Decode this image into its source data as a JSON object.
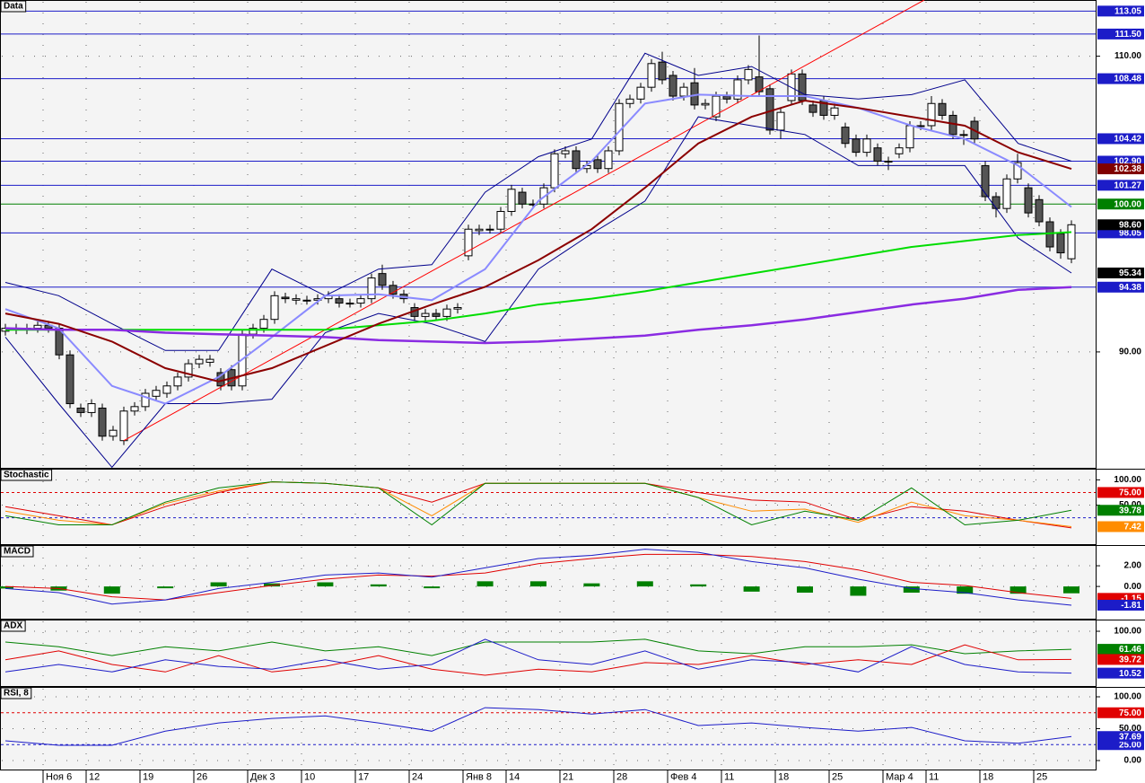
{
  "chart_data": [
    {
      "type": "candlestick",
      "title": "Data",
      "categories": [
        null,
        null,
        null,
        null,
        "Ноя 6",
        null,
        null,
        null,
        "12",
        null,
        null,
        null,
        null,
        "19",
        null,
        null,
        null,
        null,
        "26",
        null,
        null,
        null,
        null,
        "Дек 3",
        null,
        null,
        null,
        null,
        "10",
        null,
        null,
        null,
        null,
        "17",
        null,
        null,
        null,
        null,
        "24",
        null,
        null,
        null,
        null,
        "Янв 8",
        null,
        null,
        null,
        "14",
        null,
        null,
        null,
        null,
        "21",
        null,
        null,
        null,
        null,
        "28",
        null,
        null,
        null,
        null,
        "Фев 4",
        null,
        null,
        null,
        null,
        "11",
        null,
        null,
        null,
        null,
        "18",
        null,
        null,
        null,
        null,
        "25",
        null,
        null,
        null,
        null,
        "Мар 4",
        null,
        null,
        null,
        "11",
        null,
        null,
        null,
        null,
        "18",
        null,
        null,
        null,
        null,
        "25",
        null,
        null,
        null
      ],
      "open": [
        91.4,
        91.6,
        91.5,
        91.6,
        91.8,
        91.6,
        89.8,
        86.2,
        85.9,
        86.2,
        84.3,
        84.0,
        86.0,
        86.3,
        87.0,
        87.2,
        87.7,
        88.3,
        89.2,
        89.3,
        88.6,
        88.8,
        87.7,
        91.2,
        91.6,
        92.2,
        93.7,
        93.5,
        93.5,
        93.5,
        93.6,
        93.6,
        93.3,
        93.3,
        93.6,
        95.3,
        94.5,
        93.9,
        93.0,
        92.4,
        92.6,
        92.4,
        92.9,
        96.5,
        98.2,
        98.3,
        98.3,
        99.5,
        100.8,
        100.0,
        100.0,
        101.1,
        103.4,
        103.6,
        102.4,
        103.0,
        102.4,
        103.6,
        106.8,
        107.1,
        107.9,
        109.6,
        108.7,
        107.3,
        108.2,
        106.7,
        105.9,
        107.3,
        107.1,
        108.4,
        108.6,
        107.8,
        105.0,
        107.0,
        108.8,
        106.7,
        107.0,
        106.0,
        105.2,
        104.4,
        103.5,
        103.8,
        102.9,
        103.4,
        103.8,
        105.3,
        105.3,
        106.8,
        106.0,
        104.7,
        105.6,
        102.6,
        100.5,
        99.7,
        101.7,
        101.1,
        100.3,
        98.8,
        98.0,
        96.3
      ],
      "high": [
        91.9,
        91.9,
        91.9,
        92.1,
        92.1,
        91.9,
        90.1,
        86.5,
        86.8,
        86.5,
        85.0,
        86.3,
        86.6,
        87.5,
        87.7,
        88.0,
        88.6,
        89.5,
        89.8,
        89.8,
        88.9,
        89.1,
        91.5,
        91.9,
        92.5,
        94.1,
        94.0,
        93.9,
        93.8,
        93.9,
        94.1,
        93.9,
        93.6,
        93.9,
        95.3,
        95.9,
        94.8,
        94.2,
        93.3,
        92.9,
        92.9,
        93.2,
        93.3,
        98.6,
        98.6,
        98.6,
        99.8,
        101.3,
        101.1,
        100.3,
        101.4,
        103.7,
        103.9,
        103.9,
        102.9,
        103.3,
        103.9,
        107.1,
        107.4,
        108.2,
        109.8,
        110.3,
        109.0,
        108.2,
        109.2,
        107.1,
        107.6,
        107.6,
        108.7,
        109.4,
        111.4,
        108.1,
        106.5,
        109.1,
        109.1,
        107.0,
        107.3,
        106.8,
        105.5,
        104.7,
        104.7,
        104.1,
        103.2,
        104.1,
        105.6,
        105.6,
        107.3,
        107.1,
        106.3,
        105.0,
        105.9,
        102.9,
        100.8,
        102.0,
        103.4,
        101.4,
        100.6,
        99.1,
        98.3,
        98.9
      ],
      "low": [
        91.1,
        91.2,
        91.2,
        91.3,
        91.3,
        89.5,
        86.2,
        85.6,
        85.6,
        84.0,
        84.0,
        83.7,
        85.7,
        86.0,
        86.7,
        86.9,
        87.4,
        88.0,
        88.9,
        89.0,
        87.4,
        87.4,
        87.4,
        90.9,
        91.3,
        91.9,
        93.3,
        93.2,
        93.2,
        93.2,
        93.3,
        93.0,
        93.0,
        93.0,
        93.3,
        94.2,
        93.6,
        93.3,
        92.1,
        92.1,
        92.1,
        92.1,
        92.6,
        96.2,
        97.9,
        98.0,
        98.0,
        99.2,
        99.7,
        99.7,
        99.7,
        100.8,
        103.1,
        102.1,
        102.1,
        102.1,
        102.1,
        103.3,
        106.5,
        106.8,
        107.6,
        108.1,
        107.0,
        107.0,
        106.4,
        106.4,
        105.6,
        106.8,
        106.8,
        108.1,
        107.3,
        104.7,
        104.4,
        106.7,
        106.7,
        105.9,
        105.7,
        105.7,
        103.8,
        103.2,
        103.2,
        102.6,
        102.3,
        103.1,
        103.5,
        105.0,
        105.0,
        105.7,
        104.4,
        104.0,
        104.1,
        100.2,
        99.1,
        99.4,
        101.4,
        99.1,
        98.5,
        96.8,
        96.3,
        96.0
      ],
      "close": [
        91.6,
        91.5,
        91.6,
        91.8,
        91.6,
        89.8,
        86.5,
        85.9,
        86.5,
        84.3,
        84.7,
        86.0,
        86.3,
        87.2,
        87.4,
        87.7,
        88.3,
        89.2,
        89.5,
        89.5,
        87.7,
        87.7,
        91.2,
        91.6,
        92.2,
        93.8,
        93.6,
        93.6,
        93.5,
        93.6,
        93.8,
        93.3,
        93.3,
        93.6,
        95.0,
        94.5,
        93.9,
        93.6,
        92.4,
        92.6,
        92.4,
        92.9,
        93.0,
        98.3,
        98.3,
        98.3,
        99.5,
        101.0,
        100.0,
        100.0,
        101.1,
        103.4,
        103.6,
        102.4,
        102.6,
        102.4,
        103.6,
        106.8,
        107.1,
        107.9,
        109.5,
        108.4,
        107.3,
        107.9,
        106.7,
        106.8,
        107.3,
        107.1,
        108.4,
        109.1,
        107.6,
        105.0,
        106.2,
        108.8,
        107.0,
        106.2,
        106.0,
        106.5,
        104.1,
        103.5,
        104.4,
        102.9,
        102.9,
        103.8,
        105.3,
        105.3,
        106.8,
        106.0,
        104.7,
        104.7,
        104.4,
        100.5,
        99.7,
        101.7,
        102.8,
        99.4,
        98.8,
        97.1,
        96.7,
        98.6
      ],
      "up_color": "#ffffff",
      "down_color": "#555555",
      "overlays": [
        {
          "color": "#00008b",
          "line_width": 1,
          "values": [
            94.7,
            93.8,
            91.9,
            90.1,
            90.1,
            95.6,
            93.8,
            95.6,
            95.9,
            100.8,
            103.2,
            104.4,
            110.2,
            108.7,
            109.3,
            107.4,
            107.1,
            107.4,
            108.4,
            104.1,
            102.9
          ]
        },
        {
          "color": "#00008b",
          "line_width": 1,
          "values": [
            91.0,
            86.5,
            82.2,
            86.5,
            86.5,
            86.8,
            91.3,
            92.6,
            91.9,
            90.7,
            95.6,
            98.0,
            100.2,
            105.9,
            105.3,
            104.7,
            102.6,
            102.6,
            102.6,
            97.7,
            95.34
          ]
        },
        {
          "color": "#8a8aff",
          "line_width": 2,
          "values": [
            92.9,
            91.6,
            87.7,
            86.5,
            88.3,
            91.0,
            93.8,
            93.9,
            93.5,
            95.6,
            100.2,
            102.9,
            106.8,
            107.4,
            107.3,
            107.3,
            106.5,
            105.3,
            104.4,
            102.6,
            99.8
          ]
        },
        {
          "color": "#00dd00",
          "line_width": 2,
          "values": [
            91.5,
            91.5,
            91.5,
            91.5,
            91.5,
            91.5,
            91.5,
            91.8,
            92.1,
            92.6,
            93.2,
            93.6,
            94.1,
            94.7,
            95.3,
            95.9,
            96.5,
            97.1,
            97.5,
            97.9,
            98.1
          ]
        },
        {
          "color": "#8a2be2",
          "line_width": 2.5,
          "values": [
            91.6,
            91.5,
            91.5,
            91.3,
            91.2,
            91.1,
            91.0,
            90.8,
            90.7,
            90.6,
            90.7,
            90.9,
            91.1,
            91.5,
            91.8,
            92.2,
            92.7,
            93.2,
            93.6,
            94.2,
            94.38
          ]
        },
        {
          "color": "#8b0000",
          "line_width": 2,
          "values": [
            92.6,
            91.9,
            90.7,
            88.9,
            88.0,
            88.9,
            90.4,
            91.9,
            93.2,
            94.4,
            96.2,
            98.3,
            101.1,
            104.1,
            105.9,
            107.0,
            106.5,
            105.9,
            105.3,
            103.5,
            102.38
          ]
        }
      ],
      "trendline": {
        "color": "#ff0000",
        "values": [
          84.0,
          113.8
        ]
      },
      "levels": [
        {
          "value": 113.05,
          "label": "113.05",
          "color": "#1c1cc8"
        },
        {
          "value": 111.5,
          "label": "111.50",
          "color": "#1c1cc8"
        },
        {
          "value": 108.48,
          "label": "108.48",
          "color": "#1c1cc8"
        },
        {
          "value": 104.42,
          "label": "104.42",
          "color": "#1c1cc8"
        },
        {
          "value": 102.9,
          "label": "102.90",
          "color": "#1c1cc8"
        },
        {
          "value": 101.27,
          "label": "101.27",
          "color": "#1c1cc8"
        },
        {
          "value": 100,
          "label": "100.00",
          "color": "#008000"
        },
        {
          "value": 98.05,
          "label": "98.05",
          "color": "#1c1cc8"
        },
        {
          "value": 94.38,
          "label": "94.38",
          "color": "#1c1cc8"
        }
      ],
      "price_labels": [
        {
          "value": 102.38,
          "label": "102.38",
          "color": "#800000"
        },
        {
          "value": 98.6,
          "label": "98.60",
          "color": "#000000"
        },
        {
          "value": 95.34,
          "label": "95.34",
          "color": "#000000"
        }
      ],
      "ylim": [
        82.1,
        113.8
      ],
      "yticks": [
        {
          "value": 110,
          "label": "110.00"
        },
        {
          "value": 90,
          "label": "90.00"
        }
      ]
    },
    {
      "type": "line",
      "title": "Stochastic",
      "ylim": [
        -29,
        122
      ],
      "yticks": [
        {
          "value": 100,
          "label": "100.00"
        },
        {
          "value": 50,
          "label": "50.00"
        }
      ],
      "levels": [
        {
          "value": 75,
          "label": "75.00",
          "color": "#e00000",
          "style": "dashed"
        },
        {
          "value": 25,
          "color": "#1c1cc8",
          "style": "dashed"
        }
      ],
      "series": [
        {
          "color": "#e00000",
          "values": [
            47,
            29,
            11,
            47,
            75,
            96,
            93,
            84,
            56,
            93,
            93,
            93,
            93,
            75,
            60,
            56,
            20,
            47,
            38,
            20,
            5
          ]
        },
        {
          "color": "#ff8c00",
          "values": [
            38,
            20,
            11,
            53,
            78,
            96,
            93,
            84,
            29,
            93,
            93,
            93,
            93,
            65,
            38,
            42,
            16,
            56,
            29,
            20,
            7.42
          ],
          "last_label": "7.42"
        },
        {
          "color": "#008000",
          "values": [
            29,
            11,
            11,
            56,
            84,
            96,
            93,
            84,
            11,
            93,
            93,
            93,
            93,
            65,
            11,
            38,
            20,
            84,
            11,
            20,
            39.78
          ],
          "last_label": "39.78"
        }
      ]
    },
    {
      "type": "line",
      "title": "MACD",
      "ylim": [
        -3.2,
        4.0
      ],
      "yticks": [
        {
          "value": 2,
          "label": "2.00"
        },
        {
          "value": 0,
          "label": "0.00"
        }
      ],
      "histogram": {
        "color": "#008000",
        "values": [
          -0.2,
          -0.4,
          -0.7,
          0.0,
          0.4,
          0.3,
          0.4,
          0.2,
          -0.1,
          0.5,
          0.5,
          0.3,
          0.5,
          0.2,
          -0.5,
          -0.6,
          -0.9,
          -0.6,
          -0.7,
          -0.7,
          -0.66
        ]
      },
      "series": [
        {
          "color": "#e00000",
          "values": [
            0.0,
            -0.2,
            -1.0,
            -1.3,
            -0.6,
            0.1,
            0.7,
            1.1,
            1.0,
            1.3,
            2.2,
            2.7,
            3.1,
            3.1,
            2.9,
            2.4,
            1.6,
            0.4,
            0.1,
            -0.6,
            -1.15
          ],
          "last_label": "-1.15"
        },
        {
          "color": "#1c1cc8",
          "values": [
            -0.2,
            -0.6,
            -1.7,
            -1.3,
            -0.2,
            0.4,
            1.1,
            1.3,
            0.9,
            1.8,
            2.7,
            3.0,
            3.6,
            3.3,
            2.4,
            1.8,
            0.7,
            -0.2,
            -0.6,
            -1.3,
            -1.81
          ],
          "last_label": "-1.81"
        }
      ]
    },
    {
      "type": "line",
      "title": "ADX",
      "ylim": [
        -19,
        125
      ],
      "yticks": [
        {
          "value": 100,
          "label": "100.00"
        }
      ],
      "series": [
        {
          "color": "#008000",
          "values": [
            77,
            67,
            48,
            67,
            58,
            77,
            58,
            67,
            48,
            77,
            77,
            77,
            83,
            58,
            52,
            67,
            67,
            71,
            52,
            58,
            61.46
          ],
          "last_label": "61.46"
        },
        {
          "color": "#e00000",
          "values": [
            39,
            58,
            29,
            13,
            48,
            13,
            25,
            48,
            19,
            6,
            19,
            13,
            33,
            29,
            48,
            29,
            39,
            29,
            71,
            39,
            39.72
          ],
          "last_label": "39.72"
        },
        {
          "color": "#1c1cc8",
          "values": [
            13,
            29,
            13,
            39,
            25,
            19,
            39,
            19,
            29,
            83,
            39,
            29,
            58,
            19,
            39,
            33,
            13,
            67,
            29,
            13,
            10.52
          ],
          "last_label": "10.52"
        }
      ]
    },
    {
      "type": "line",
      "title": "RSI, 8",
      "ylim": [
        -15.5,
        115.5
      ],
      "yticks": [
        {
          "value": 100,
          "label": "100.00"
        },
        {
          "value": 50,
          "label": "50.00"
        },
        {
          "value": 0,
          "label": "0.00"
        }
      ],
      "levels": [
        {
          "value": 75,
          "label": "75.00",
          "color": "#e00000",
          "style": "dashed"
        },
        {
          "value": 25,
          "label": "25.00",
          "color": "#1c1cc8",
          "style": "dashed"
        }
      ],
      "series": [
        {
          "color": "#1c1cc8",
          "values": [
            31,
            24,
            24,
            46,
            59,
            66,
            70,
            59,
            46,
            83,
            80,
            73,
            80,
            55,
            59,
            52,
            46,
            52,
            31,
            27,
            37.69
          ],
          "last_label": "37.69"
        }
      ]
    }
  ]
}
